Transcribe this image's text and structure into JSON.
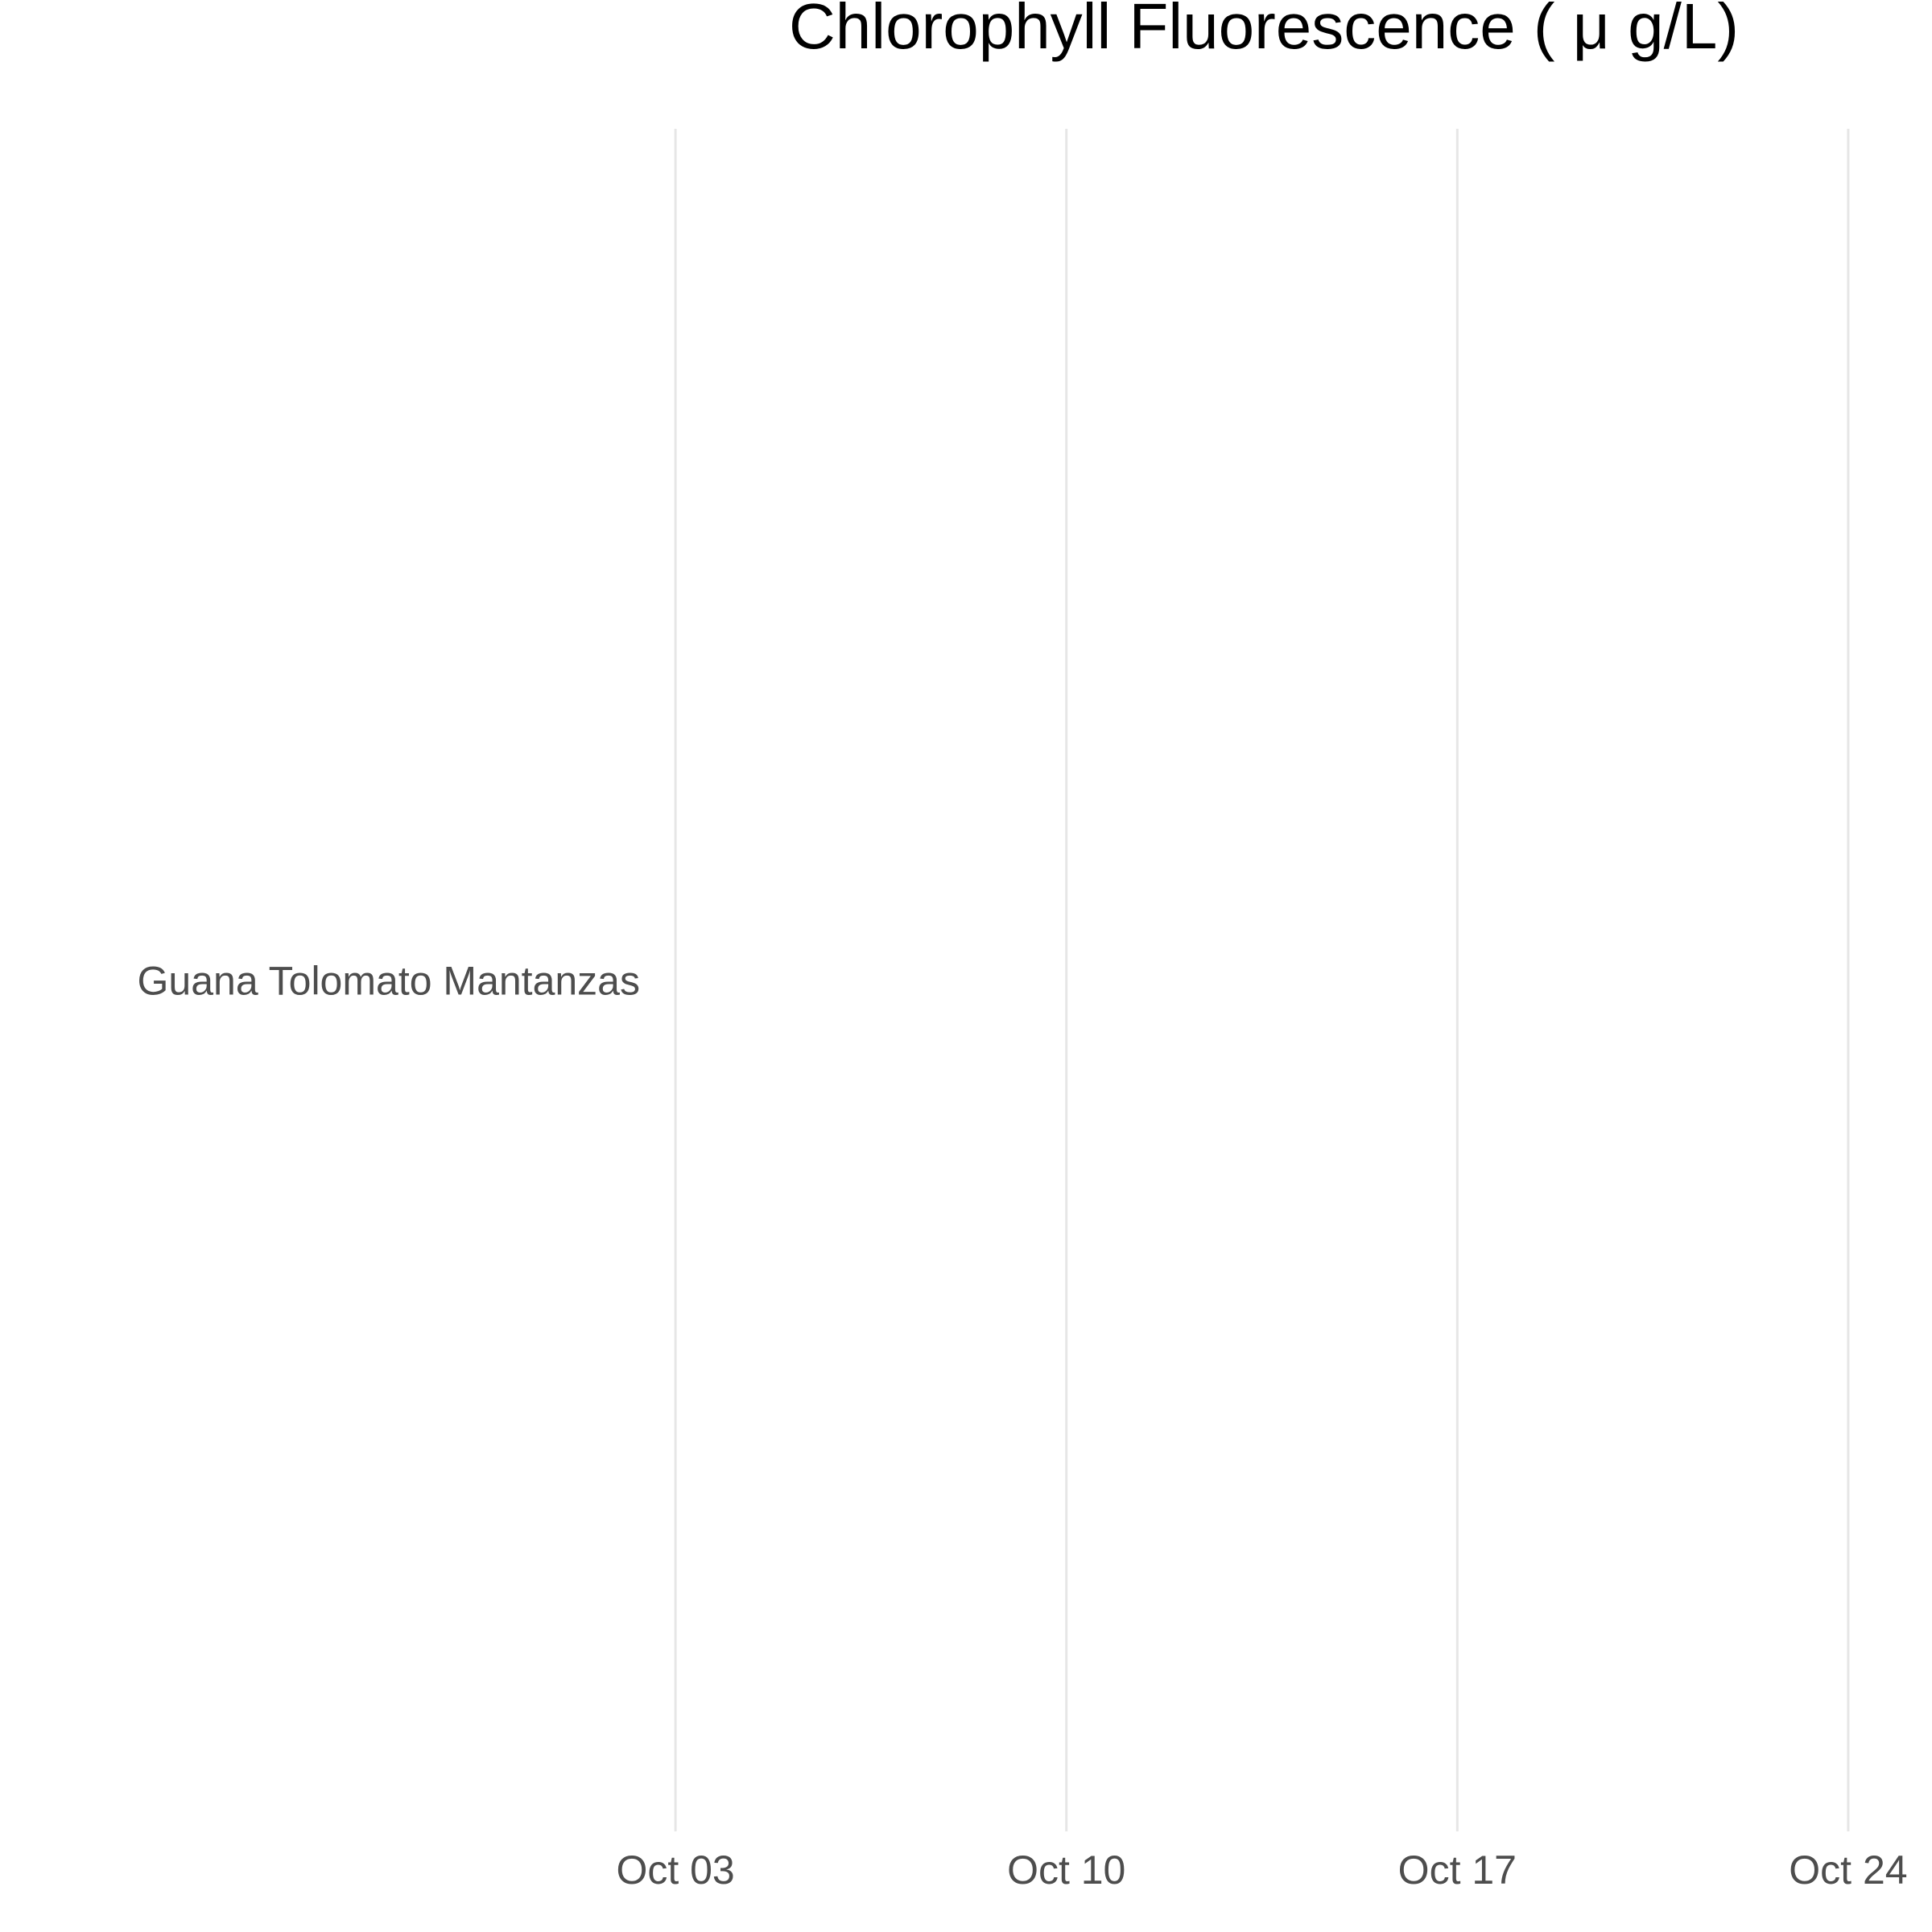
{
  "chart_data": {
    "type": "line",
    "title": "Chlorophyll Fluorescence ( μ g/L)",
    "xlabel": "",
    "ylabel": "",
    "x_axis": {
      "scale": "date",
      "ticks": [
        "Oct 03",
        "Oct 10",
        "Oct 17",
        "Oct 24"
      ],
      "tick_days": [
        3,
        10,
        17,
        24
      ],
      "range_days": [
        -1.6,
        25.5
      ]
    },
    "y_axis": {
      "scale": "categorical",
      "categories": [
        "Guana Tolomato Mantanzas"
      ]
    },
    "series": [],
    "grid": {
      "vertical_major": true,
      "horizontal": false
    },
    "legend": "none",
    "colors": {
      "background": "#ffffff",
      "grid": "#e6e6e6",
      "tick_text": "#4d4d4d",
      "title_text": "#000000"
    }
  }
}
